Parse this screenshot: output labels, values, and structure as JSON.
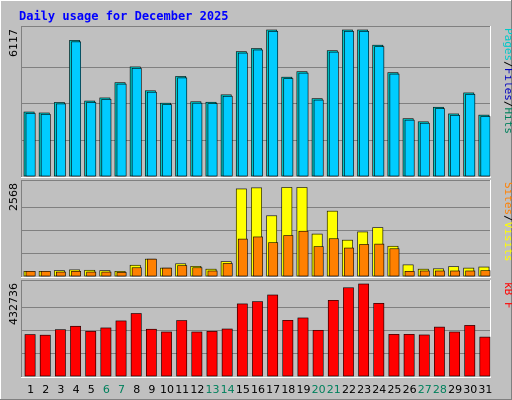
{
  "chart_data": {
    "type": "bar",
    "title": "Daily usage for December 2025",
    "categories": [
      "1",
      "2",
      "3",
      "4",
      "5",
      "6",
      "7",
      "8",
      "9",
      "10",
      "11",
      "12",
      "13",
      "14",
      "15",
      "16",
      "17",
      "18",
      "19",
      "20",
      "21",
      "22",
      "23",
      "24",
      "25",
      "26",
      "27",
      "28",
      "29",
      "30",
      "31"
    ],
    "weekend_days": [
      6,
      7,
      13,
      14,
      20,
      21,
      27,
      28
    ],
    "colors": {
      "frame_bg": "#c0c0c0",
      "plot_bg": "#c0c0c0",
      "hits": "#00c8c8",
      "files": "#00ccff",
      "pages": "#0000c0",
      "visits": "#ffff00",
      "sites": "#ff8000",
      "kbytes": "#ff0000",
      "weekend_label": "#00805c",
      "title": "#0000ff"
    },
    "panels": [
      {
        "id": "hits-files-pages",
        "ymax_label": "6117",
        "ymax": 6117,
        "legend": [
          {
            "text": "Pages",
            "color": "#00c8c8"
          },
          {
            "text": "/",
            "color": "#000000"
          },
          {
            "text": "Files",
            "color": "#0000c0"
          },
          {
            "text": "/",
            "color": "#000000"
          },
          {
            "text": "Hits",
            "color": "#00805c"
          }
        ],
        "series": [
          {
            "name": "Hits",
            "color": "#00c8c8",
            "values": [
              2680,
              2640,
              3080,
              5680,
              3140,
              3270,
              3910,
              4570,
              3570,
              3050,
              4170,
              3110,
              3090,
              3400,
              5210,
              5340,
              6117,
              4140,
              4370,
              3240,
              5250,
              6117,
              6117,
              5480,
              4330,
              2400,
              2270,
              2880,
              2600,
              3480,
              2550
            ]
          },
          {
            "name": "Files",
            "color": "#00ccff",
            "values": [
              2620,
              2580,
              3020,
              5620,
              3080,
              3210,
              3850,
              4510,
              3510,
              2990,
              4110,
              3050,
              3030,
              3340,
              5150,
              5280,
              6060,
              4080,
              4310,
              3180,
              5190,
              6060,
              6060,
              5420,
              4270,
              2340,
              2210,
              2820,
              2540,
              3420,
              2490
            ]
          }
        ]
      },
      {
        "id": "visits-sites",
        "ymax_label": "2568",
        "ymax": 2568,
        "legend": [
          {
            "text": "Sites",
            "color": "#ff8000"
          },
          {
            "text": "/",
            "color": "#000000"
          },
          {
            "text": "Visits",
            "color": "#ffff00"
          }
        ],
        "series": [
          {
            "name": "Visits",
            "color": "#ffff00",
            "values": [
              130,
              130,
              150,
              170,
              160,
              150,
              130,
              300,
              470,
              220,
              340,
              270,
              190,
              400,
              2430,
              2460,
              1680,
              2470,
              2470,
              1170,
              1810,
              1000,
              1230,
              1350,
              830,
              310,
              190,
              200,
              260,
              220,
              250
            ]
          },
          {
            "name": "Sites",
            "color": "#ff8000",
            "values": [
              130,
              130,
              110,
              130,
              110,
              110,
              100,
              230,
              470,
              220,
              290,
              230,
              140,
              350,
              1030,
              1090,
              930,
              1130,
              1250,
              820,
              1040,
              780,
              880,
              890,
              760,
              130,
              140,
              140,
              140,
              140,
              150
            ]
          }
        ]
      },
      {
        "id": "kbytes",
        "ymax_label": "432736",
        "ymax": 432736,
        "legend": [
          {
            "text": "kB F",
            "color": "#ff0000"
          }
        ],
        "series": [
          {
            "name": "kB F",
            "color": "#ff0000",
            "values": [
              195000,
              192000,
              218000,
              234000,
              210000,
              226000,
              259000,
              294000,
              220000,
              207000,
              261000,
              207000,
              210000,
              221000,
              339000,
              350000,
              381000,
              262000,
              273000,
              215000,
              356000,
              415000,
              432736,
              342000,
              196000,
              196000,
              193000,
              230000,
              207000,
              238000,
              183000
            ]
          }
        ]
      }
    ]
  }
}
